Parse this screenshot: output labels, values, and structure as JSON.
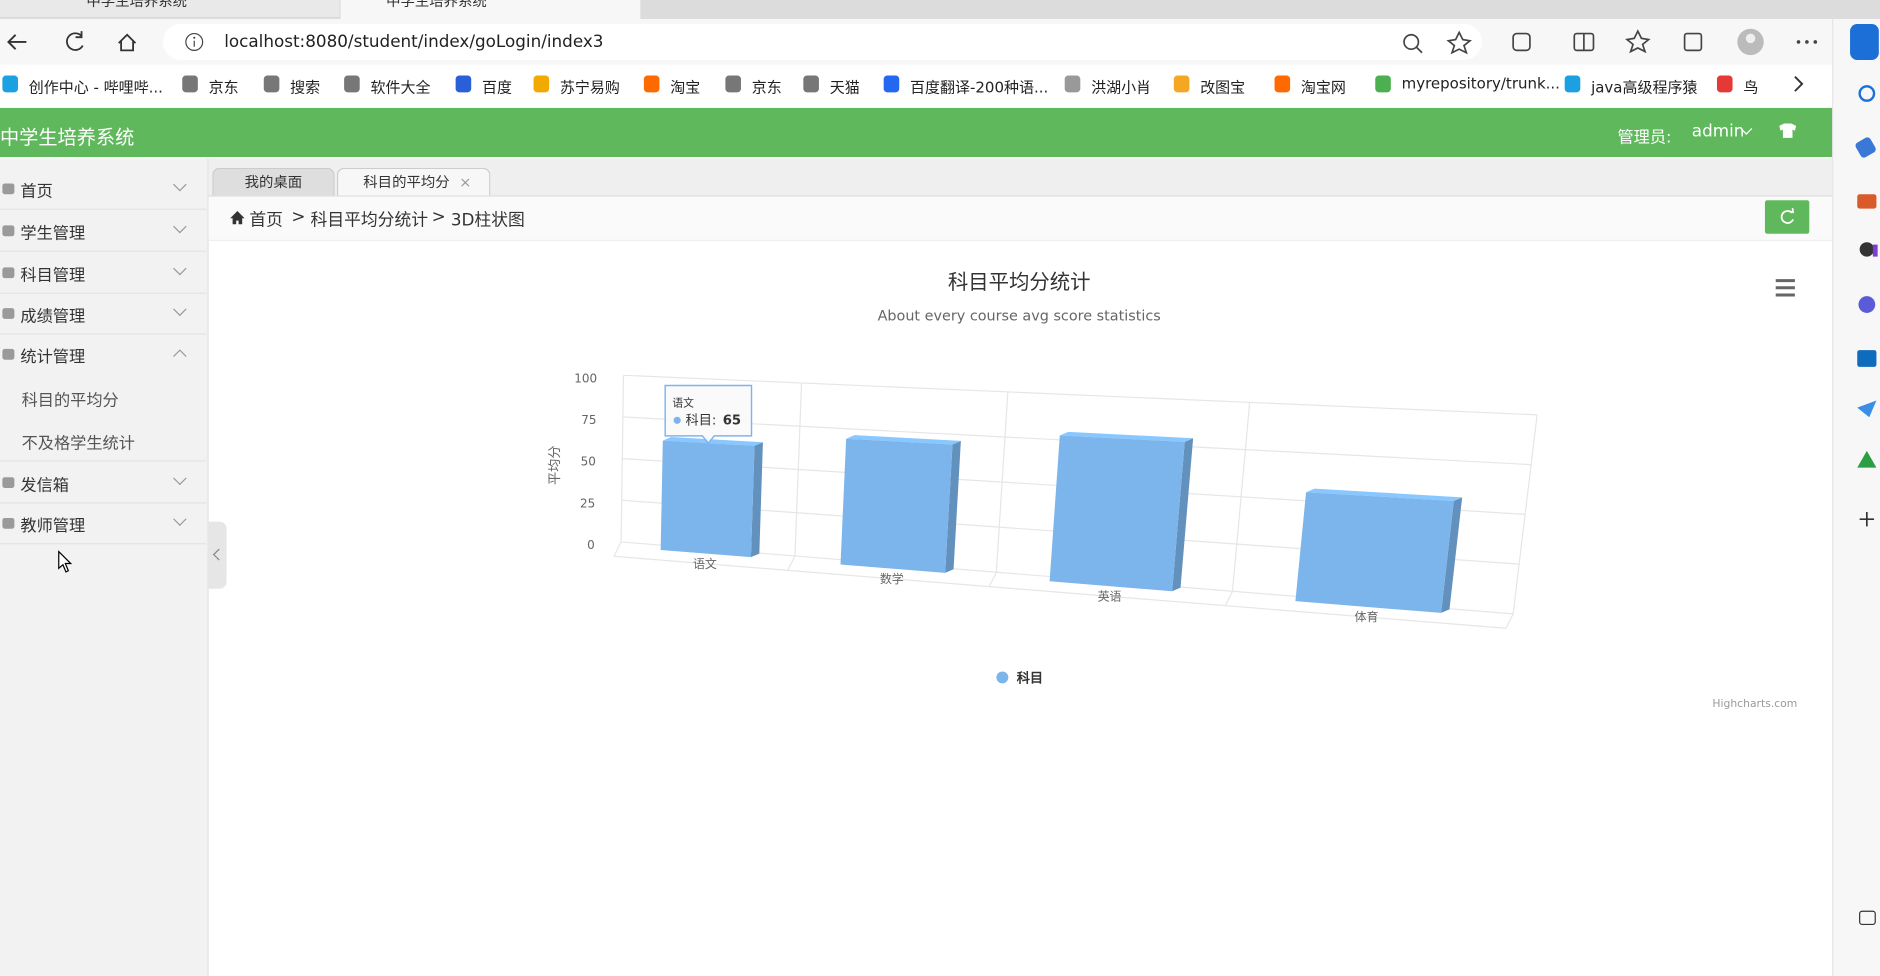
{
  "browser": {
    "tabs": [
      "中学生培养系统",
      "中学生培养系统"
    ],
    "url": "localhost:8080/student/index/goLogin/index3",
    "bookmarks": [
      "创作中心 - 哔哩哔...",
      "京东",
      "搜索",
      "软件大全",
      "百度",
      "苏宁易购",
      "淘宝",
      "京东",
      "天猫",
      "百度翻译-200种语...",
      "洪湖小肖",
      "改图宝",
      "淘宝网",
      "myrepository/trunk...",
      "java高级程序猿",
      "鸟"
    ]
  },
  "app": {
    "title": "中学生培养系统",
    "admin_label": "管理员:",
    "admin_name": "admin"
  },
  "sidebar": {
    "items": [
      "首页",
      "学生管理",
      "科目管理",
      "成绩管理",
      "统计管理",
      "发信箱",
      "教师管理"
    ],
    "children": [
      "科目的平均分",
      "不及格学生统计"
    ]
  },
  "tabs": [
    "我的桌面",
    "科目的平均分"
  ],
  "breadcrumb": {
    "items": [
      "首页",
      "科目平均分统计",
      "3D柱状图"
    ],
    "separator": ">"
  },
  "chart_data": {
    "type": "column3d",
    "title": "科目平均分统计",
    "subtitle": "About every course avg score statistics",
    "y_label": "平均分",
    "categories": [
      "语文",
      "数学",
      "英语",
      "体育"
    ],
    "series": [
      {
        "name": "科目",
        "color": "#7cb5ec",
        "values": [
          65,
          72,
          80,
          57
        ]
      }
    ],
    "ylim": [
      0,
      100
    ],
    "yticks": [
      0,
      25,
      50,
      75,
      100
    ],
    "grid": true,
    "legend": "bottom",
    "tooltip": {
      "label": "科目:"
    },
    "credits": "Highcharts.com"
  }
}
